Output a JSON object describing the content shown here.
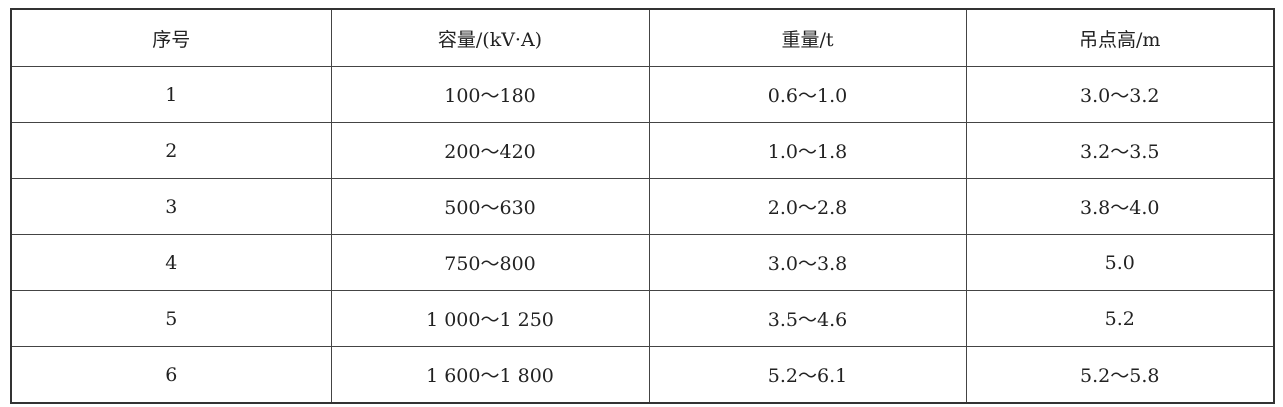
{
  "table": {
    "header": [
      "序号",
      "容量/(kV·A)",
      "重量/t",
      "吊点高/m"
    ],
    "rows": [
      [
        "1",
        "100～180",
        "0.6～1.0",
        "3.0～3.2"
      ],
      [
        "2",
        "200～420",
        "1.0～1.8",
        "3.2～3.5"
      ],
      [
        "3",
        "500～630",
        "2.0～2.8",
        "3.8～4.0"
      ],
      [
        "4",
        "750～800",
        "3.0～3.8",
        "5.0"
      ],
      [
        "5",
        "1 000～1 250",
        "3.5～4.6",
        "5.2"
      ],
      [
        "6",
        "1 600～1 800",
        "5.2～6.1",
        "5.2～5.8"
      ]
    ]
  }
}
